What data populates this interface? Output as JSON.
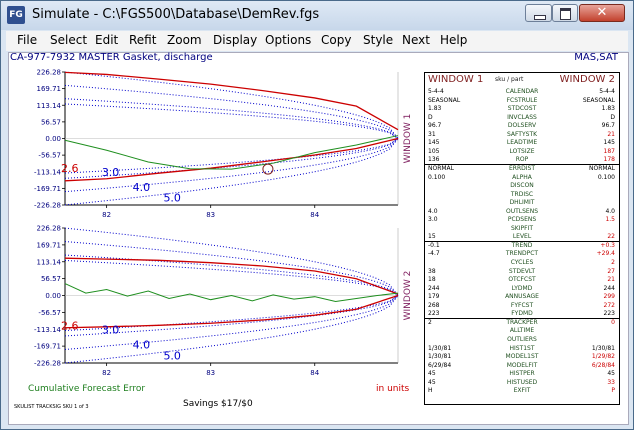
{
  "window": {
    "title": "Simulate - C:\\FGS500\\Database\\DemRev.fgs",
    "icon": "fgs-icon",
    "controls": {
      "minimize": "minimize-icon",
      "maximize": "maximize-icon",
      "close": "✕"
    }
  },
  "menu": [
    "File",
    "Select",
    "Edit",
    "Refit",
    "Zoom",
    "Display",
    "Options",
    "Copy",
    "Style",
    "Next",
    "Help"
  ],
  "header": {
    "sku": "CA-977-7932 MASTER Gasket, discharge",
    "mode": "MAS,SAT"
  },
  "colors": {
    "actual": "#1f8f1f",
    "forecast": "#cc0000",
    "bounds": "#0000cc",
    "labels": "#00007f",
    "window_label": "#7f1f5f"
  },
  "chart_data": [
    {
      "type": "line",
      "window_label": "WINDOW 1",
      "y_ticks": [
        "226.28",
        "169.71",
        "113.14",
        "56.57",
        "0.00",
        "-56.57",
        "-113.14",
        "-169.71",
        "-226.28"
      ],
      "ylim": [
        -226.28,
        226.28
      ],
      "x_ticks": [
        "82",
        "83",
        "84"
      ],
      "x_tick_values": [
        82,
        83,
        84
      ],
      "xlim": [
        81.6,
        84.8
      ],
      "bound_labels": [
        "2.6",
        "3.0",
        "4.0",
        "5.0"
      ],
      "bound_label_values": [
        -113.14,
        -128,
        -178,
        -215
      ],
      "bound_multipliers": [
        2.6,
        3.0,
        4.0,
        5.0
      ],
      "bound_axis_gap": 0.4,
      "red_series": {
        "x": [
          81.6,
          82.0,
          82.5,
          83.0,
          83.5,
          84.0,
          84.4,
          84.8
        ],
        "y": [
          -144,
          -137,
          -118,
          -101,
          -79,
          -56,
          -34,
          0
        ]
      },
      "red_upper_series": {
        "x": [
          81.6,
          82.0,
          82.5,
          83.0,
          83.5,
          84.0,
          84.4,
          84.8
        ],
        "y": [
          225,
          218,
          202,
          185,
          163,
          138,
          110,
          30
        ]
      },
      "green_series": {
        "x": [
          81.6,
          82.0,
          82.4,
          82.8,
          83.2,
          83.6,
          84.0,
          84.4,
          84.8
        ],
        "y": [
          -6,
          -40,
          -80,
          -103,
          -104,
          -84,
          -48,
          -22,
          10
        ]
      },
      "marker": {
        "x": 83.55,
        "y": -104
      }
    },
    {
      "type": "line",
      "window_label": "WINDOW 2",
      "y_ticks": [
        "226.28",
        "169.71",
        "113.14",
        "56.57",
        "0.00",
        "-56.57",
        "-113.14",
        "-169.71",
        "-226.28"
      ],
      "ylim": [
        -226.28,
        226.28
      ],
      "x_ticks": [
        "82",
        "83",
        "84"
      ],
      "x_tick_values": [
        82,
        83,
        84
      ],
      "xlim": [
        81.6,
        84.8
      ],
      "bound_labels": [
        "2.6",
        "3.0",
        "4.0",
        "5.0"
      ],
      "bound_label_values": [
        -113.14,
        -128,
        -178,
        -215
      ],
      "bound_multipliers": [
        2.6,
        3.0,
        4.0,
        5.0
      ],
      "bound_axis_gap": 0.4,
      "red_series": {
        "x": [
          81.6,
          82.0,
          82.5,
          83.0,
          83.5,
          84.0,
          84.4,
          84.8
        ],
        "y": [
          -108,
          -105,
          -100,
          -93,
          -82,
          -66,
          -46,
          0
        ]
      },
      "red_upper_series": {
        "x": [
          81.6,
          82.0,
          82.5,
          83.0,
          83.5,
          84.0,
          84.4,
          84.8
        ],
        "y": [
          125,
          122,
          118,
          110,
          99,
          82,
          56,
          5
        ]
      },
      "green_series": {
        "x": [
          81.6,
          81.8,
          82.0,
          82.2,
          82.4,
          82.6,
          82.8,
          83.0,
          83.2,
          83.4,
          83.6,
          83.8,
          84.0,
          84.2,
          84.4,
          84.6,
          84.8
        ],
        "y": [
          40,
          8,
          20,
          -2,
          15,
          -10,
          5,
          -14,
          0,
          -18,
          2,
          -12,
          -4,
          -20,
          -10,
          0,
          8
        ]
      }
    }
  ],
  "footer": {
    "cumulative": "Cumulative Forecast Error",
    "units": "in units",
    "savings": "Savings $17/$0",
    "status": "SKULIST TRACKSIG SKU 1 of 3"
  },
  "side": {
    "w1": "WINDOW 1",
    "mid": "sku / part",
    "w2": "WINDOW 2",
    "rows": [
      {
        "l": "5-4-4",
        "c": "CALENDAR",
        "r": "5-4-4"
      },
      {
        "l": "SEASONAL",
        "c": "FCSTRULE",
        "r": "SEASONAL"
      },
      {
        "l": "1.83",
        "c": "STDCOST",
        "r": "1.83"
      },
      {
        "l": "D",
        "c": "INVCLASS",
        "r": "D"
      },
      {
        "l": "96.7",
        "c": "DOLSERV",
        "r": "96.7"
      },
      {
        "l": "31",
        "c": "SAFTYSTK",
        "r": "21",
        "red": true
      },
      {
        "l": "145",
        "c": "LEADTIME",
        "r": "145"
      },
      {
        "l": "105",
        "c": "LOTSIZE",
        "r": "187",
        "red": true
      },
      {
        "l": "136",
        "c": "ROP",
        "r": "178",
        "red": true
      },
      {
        "l": "NORMAL",
        "c": "ERRDIST",
        "r": "NORMAL",
        "sep": true
      },
      {
        "l": "0.100",
        "c": "ALPHA",
        "r": "0.100"
      },
      {
        "l": "",
        "c": "DISCON",
        "r": ""
      },
      {
        "l": "",
        "c": "TRDISC",
        "r": ""
      },
      {
        "l": "",
        "c": "DHLIMIT",
        "r": ""
      },
      {
        "l": "4.0",
        "c": "OUTLSENS",
        "r": "4.0"
      },
      {
        "l": "3.0",
        "c": "PCDSENS",
        "r": "1.5",
        "red": true
      },
      {
        "l": "",
        "c": "SKIPFIT",
        "r": ""
      },
      {
        "l": "15",
        "c": "LEVEL",
        "r": "22",
        "red": true
      },
      {
        "l": "-0.1",
        "c": "TREND",
        "r": "+0.3",
        "red": true,
        "sep": true
      },
      {
        "l": "-4.7",
        "c": "TRENDPCT",
        "r": "+29.4",
        "red": true
      },
      {
        "l": "",
        "c": "CYCLES",
        "r": "2",
        "red": true
      },
      {
        "l": "38",
        "c": "STDEVLT",
        "r": "27",
        "red": true
      },
      {
        "l": "18",
        "c": "OTCFCST",
        "r": "21",
        "red": true
      },
      {
        "l": "244",
        "c": "LYDMD",
        "r": "244"
      },
      {
        "l": "179",
        "c": "ANNUSAGE",
        "r": "299",
        "red": true
      },
      {
        "l": "268",
        "c": "FYFCST",
        "r": "272",
        "red": true
      },
      {
        "l": "223",
        "c": "FYDMD",
        "r": "223"
      },
      {
        "l": "2",
        "c": "TRACKPER",
        "r": "0",
        "red": true,
        "sep": true
      },
      {
        "l": "",
        "c": "ALLTIME",
        "r": ""
      },
      {
        "l": "",
        "c": "OUTLIERS",
        "r": ""
      },
      {
        "l": "1/30/81",
        "c": "HIST1ST",
        "r": "1/30/81"
      },
      {
        "l": "1/30/81",
        "c": "MODEL1ST",
        "r": "1/29/82",
        "red": true
      },
      {
        "l": "6/29/84",
        "c": "MODELFIT",
        "r": "6/28/84",
        "red": true
      },
      {
        "l": "45",
        "c": "HISTPER",
        "r": "45"
      },
      {
        "l": "45",
        "c": "HISTUSED",
        "r": "33",
        "red": true
      },
      {
        "l": "H",
        "c": "EXFIT",
        "r": "P",
        "red": true
      }
    ]
  }
}
